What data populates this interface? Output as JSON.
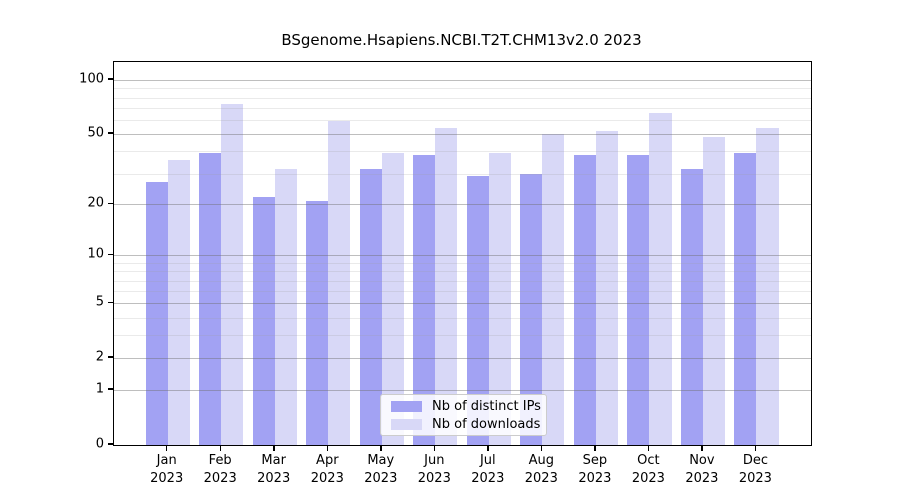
{
  "chart_data": {
    "type": "bar",
    "title": "BSgenome.Hsapiens.NCBI.T2T.CHM13v2.0 2023",
    "categories": [
      "Jan",
      "Feb",
      "Mar",
      "Apr",
      "May",
      "Jun",
      "Jul",
      "Aug",
      "Sep",
      "Oct",
      "Nov",
      "Dec"
    ],
    "year_label": "2023",
    "series": [
      {
        "name": "Nb of distinct IPs",
        "color": "#a2a2f3",
        "values": [
          27,
          39,
          22,
          21,
          32,
          38,
          29,
          30,
          38,
          38,
          32,
          39
        ]
      },
      {
        "name": "Nb of downloads",
        "color": "#d8d8f7",
        "values": [
          36,
          74,
          32,
          59,
          39,
          54,
          39,
          50,
          52,
          66,
          48,
          54
        ]
      }
    ],
    "xlabel": "",
    "ylabel": "",
    "y_scale": "log1p",
    "y_ticks": [
      0,
      1,
      2,
      5,
      10,
      20,
      50,
      100
    ],
    "y_minor_gridlines": [
      3,
      4,
      6,
      7,
      8,
      9,
      30,
      40,
      60,
      70,
      80,
      90
    ],
    "ylim": [
      0,
      126
    ],
    "grid": true,
    "legend_position": "lower center"
  }
}
